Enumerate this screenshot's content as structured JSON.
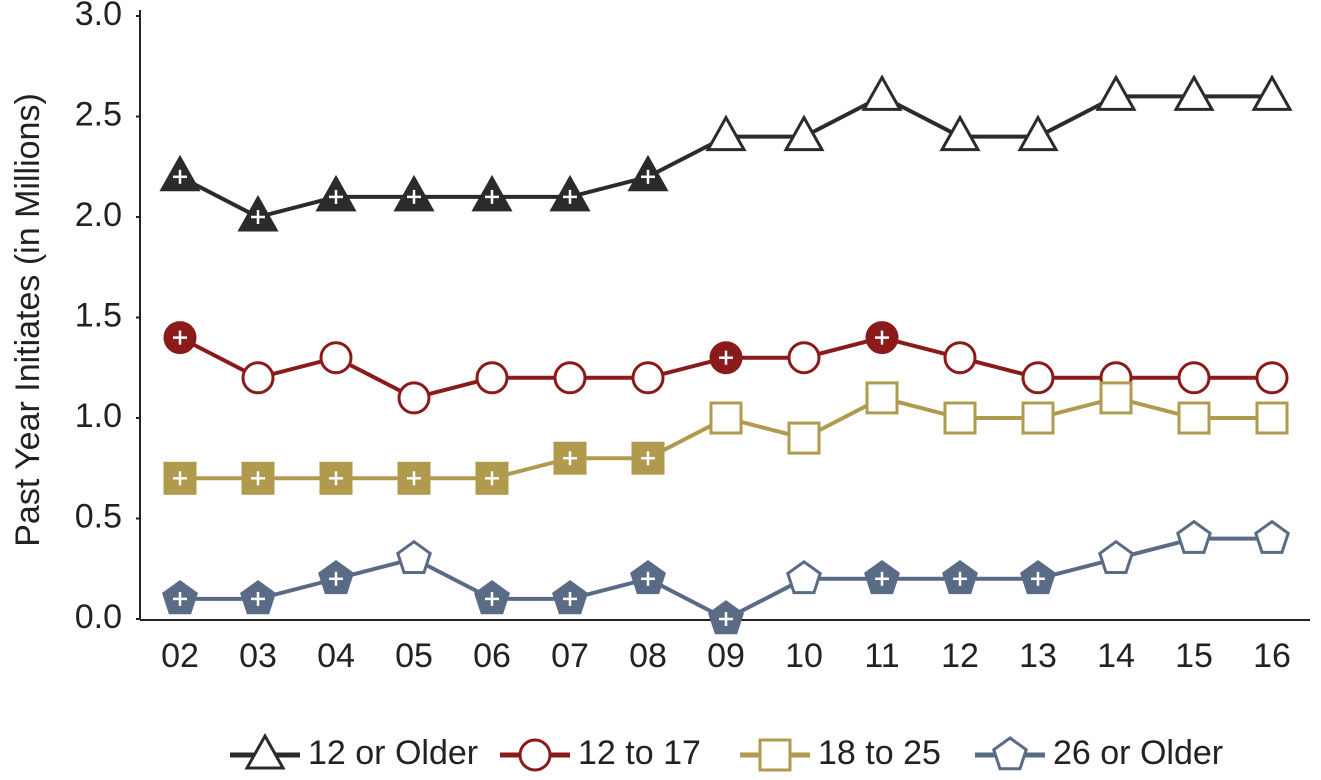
{
  "chart_data": {
    "type": "line",
    "y_label": "Past Year Initiates (in Millions)",
    "categories": [
      "02",
      "03",
      "04",
      "05",
      "06",
      "07",
      "08",
      "09",
      "10",
      "11",
      "12",
      "13",
      "14",
      "15",
      "16"
    ],
    "ylim": [
      0,
      3
    ],
    "yticks": [
      {
        "value": 0,
        "label": "0.0"
      },
      0.5,
      {
        "value": 1,
        "label": "1.0"
      },
      1.5,
      {
        "value": 2,
        "label": "2.0"
      },
      2.5,
      {
        "value": 3,
        "label": "3.0"
      }
    ],
    "grid": false,
    "legend": "bottom",
    "series": [
      {
        "name": "12 or Older",
        "color": "#2b2b2b",
        "marker": "triangle",
        "values": [
          2.2,
          2.0,
          2.1,
          2.1,
          2.1,
          2.1,
          2.2,
          2.4,
          2.4,
          2.6,
          2.4,
          2.4,
          2.6,
          2.6,
          2.6
        ],
        "filled": [
          true,
          true,
          true,
          true,
          true,
          true,
          true,
          false,
          false,
          false,
          false,
          false,
          false,
          false,
          false
        ]
      },
      {
        "name": "12 to 17",
        "color": "#8b1a1a",
        "marker": "circle",
        "values": [
          1.4,
          1.2,
          1.3,
          1.1,
          1.2,
          1.2,
          1.2,
          1.3,
          1.3,
          1.4,
          1.3,
          1.2,
          1.2,
          1.2,
          1.2
        ],
        "filled": [
          true,
          false,
          false,
          false,
          false,
          false,
          false,
          true,
          false,
          true,
          false,
          false,
          false,
          false,
          false
        ]
      },
      {
        "name": "18 to 25",
        "color": "#b09a4e",
        "marker": "square",
        "values": [
          0.7,
          0.7,
          0.7,
          0.7,
          0.7,
          0.8,
          0.8,
          1.0,
          0.9,
          1.1,
          1.0,
          1.0,
          1.1,
          1.0,
          1.0
        ],
        "filled": [
          true,
          true,
          true,
          true,
          true,
          true,
          true,
          false,
          false,
          false,
          false,
          false,
          false,
          false,
          false
        ]
      },
      {
        "name": "26 or Older",
        "color": "#5a6b85",
        "marker": "pentagon",
        "values": [
          0.1,
          0.1,
          0.2,
          0.3,
          0.1,
          0.1,
          0.2,
          0.0,
          0.2,
          0.2,
          0.2,
          0.2,
          0.3,
          0.4,
          0.4
        ],
        "filled": [
          true,
          true,
          true,
          false,
          true,
          true,
          true,
          true,
          false,
          true,
          true,
          true,
          false,
          false,
          false
        ]
      }
    ]
  }
}
